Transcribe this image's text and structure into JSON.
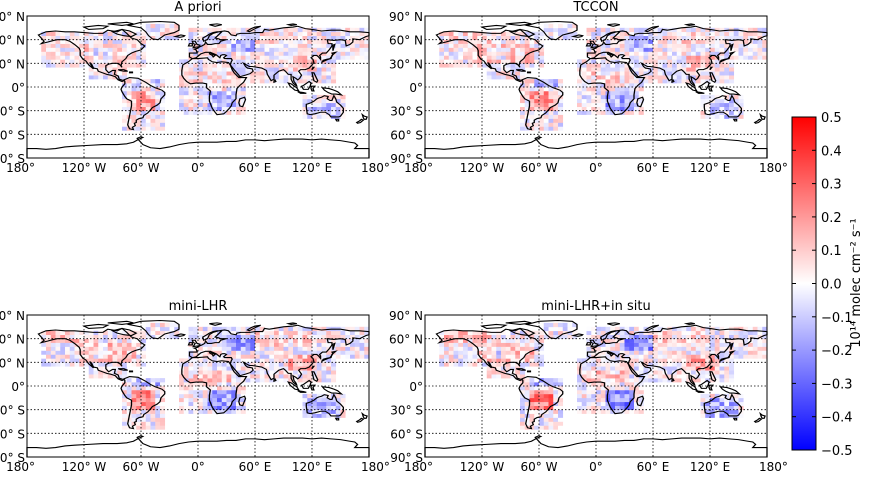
{
  "panels": [
    {
      "title": "A priori"
    },
    {
      "title": "TCCON"
    },
    {
      "title": "mini-LHR"
    },
    {
      "title": "mini-LHR+in situ"
    }
  ],
  "lat_ticks": [
    "90° N",
    "60° N",
    "30° N",
    "0°",
    "30° S",
    "60° S",
    "90° S"
  ],
  "lon_ticks": [
    "180°",
    "120° W",
    "60° W",
    "0°",
    "60° E",
    "120° E",
    "180°"
  ],
  "colorbar": {
    "label": "10¹⁴ molec cm⁻² s⁻¹",
    "min": -0.5,
    "max": 0.5,
    "ticks": [
      "0.5",
      "0.4",
      "0.3",
      "0.2",
      "0.1",
      "0.0",
      "−0.1",
      "−0.2",
      "−0.3",
      "−0.4",
      "−0.5"
    ],
    "colormap": "bwr",
    "low_color": "#0000ff",
    "mid_color": "#ffffff",
    "high_color": "#ff0000"
  }
}
